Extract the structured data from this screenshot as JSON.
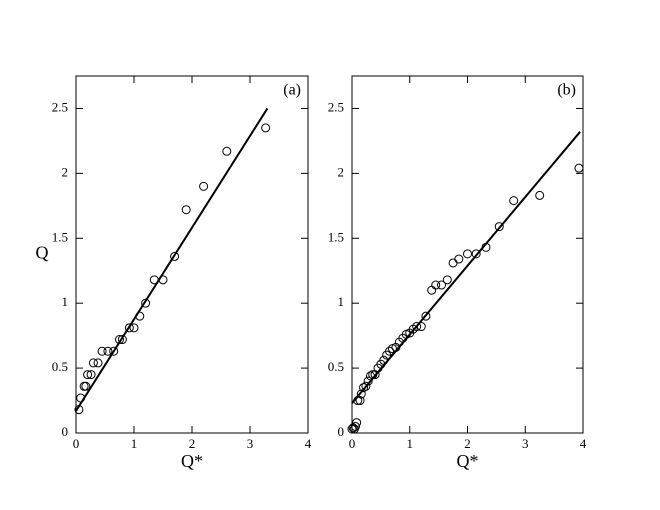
{
  "chart_data": [
    {
      "type": "scatter",
      "panel_label": "(a)",
      "ylabel": "Q",
      "xlabel": "Q*",
      "xlim": [
        0,
        4
      ],
      "xticks": [
        0,
        1,
        2,
        3,
        4
      ],
      "ylim": [
        0,
        2.75
      ],
      "yticks": [
        0,
        0.5,
        1,
        1.5,
        2,
        2.5
      ],
      "points": {
        "x": [
          0.05,
          0.08,
          0.14,
          0.17,
          0.2,
          0.26,
          0.3,
          0.38,
          0.45,
          0.55,
          0.65,
          0.75,
          0.8,
          0.92,
          1.0,
          1.1,
          1.2,
          1.35,
          1.5,
          1.7,
          1.9,
          2.2,
          2.6,
          3.27
        ],
        "y": [
          0.18,
          0.27,
          0.36,
          0.36,
          0.45,
          0.45,
          0.54,
          0.54,
          0.63,
          0.63,
          0.63,
          0.72,
          0.72,
          0.81,
          0.81,
          0.9,
          1.0,
          1.18,
          1.18,
          1.36,
          1.72,
          1.9,
          2.17,
          2.35
        ]
      },
      "fit": {
        "x": [
          0,
          3.3
        ],
        "y": [
          0.17,
          2.5
        ]
      }
    },
    {
      "type": "scatter",
      "panel_label": "(b)",
      "xlabel": "Q*",
      "xlim": [
        0,
        4
      ],
      "xticks": [
        0,
        1,
        2,
        3,
        4
      ],
      "ylim": [
        0,
        2.75
      ],
      "yticks": [
        0,
        0.5,
        1,
        1.5,
        2,
        2.5
      ],
      "points": {
        "x": [
          0.0,
          0.02,
          0.04,
          0.06,
          0.08,
          0.1,
          0.14,
          0.16,
          0.2,
          0.24,
          0.28,
          0.32,
          0.36,
          0.4,
          0.45,
          0.5,
          0.55,
          0.6,
          0.65,
          0.7,
          0.76,
          0.82,
          0.88,
          0.94,
          1.0,
          1.06,
          1.12,
          1.2,
          1.28,
          1.38,
          1.45,
          1.55,
          1.65,
          1.75,
          1.85,
          2.0,
          2.15,
          2.32,
          2.55,
          2.8,
          3.25,
          3.93
        ],
        "y": [
          0.03,
          0.04,
          0.03,
          0.05,
          0.08,
          0.25,
          0.25,
          0.3,
          0.35,
          0.36,
          0.4,
          0.44,
          0.45,
          0.45,
          0.5,
          0.53,
          0.56,
          0.6,
          0.63,
          0.65,
          0.66,
          0.7,
          0.73,
          0.76,
          0.77,
          0.8,
          0.82,
          0.82,
          0.9,
          1.1,
          1.14,
          1.14,
          1.18,
          1.31,
          1.34,
          1.38,
          1.38,
          1.43,
          1.59,
          1.79,
          1.83,
          2.04
        ]
      },
      "fit": {
        "x": [
          0,
          3.95
        ],
        "y": [
          0.23,
          2.32
        ]
      }
    }
  ]
}
